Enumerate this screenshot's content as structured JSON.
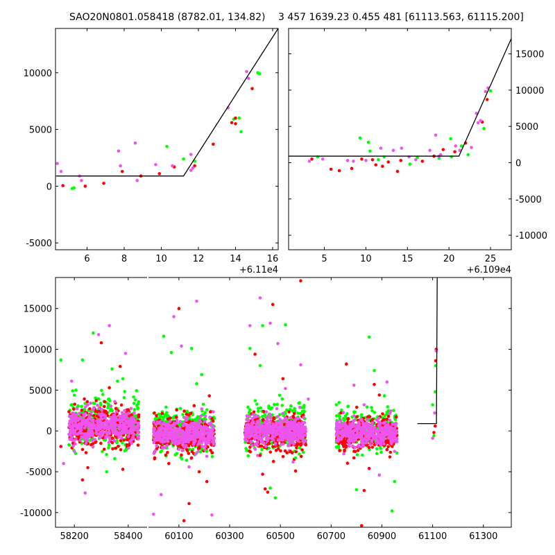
{
  "colors": {
    "green": "#00ff00",
    "red": "#ff0000",
    "magenta": "#ee55ee",
    "model_line": "#000000",
    "axes": "#000000"
  },
  "chart_data": [
    {
      "id": "top-left",
      "type": "scatter",
      "title": "SAO20N0801.058418 (8782.01, 134.82)",
      "xlim": [
        4.3,
        16.3
      ],
      "ylim": [
        -5600,
        13900
      ],
      "xticks": [
        6,
        8,
        10,
        12,
        14,
        16
      ],
      "yticks": [
        -5000,
        0,
        5000,
        10000
      ],
      "x_offset_label": "+6.11e4",
      "y_axis_side": "left",
      "series": [
        {
          "name": "green",
          "color": "green",
          "points": [
            [
              5.2,
              -200
            ],
            [
              5.3,
              -150
            ],
            [
              10.3,
              3500
            ],
            [
              11.2,
              2400
            ],
            [
              11.8,
              2200
            ],
            [
              13.9,
              5900
            ],
            [
              14.2,
              6000
            ],
            [
              14.3,
              4800
            ],
            [
              15.2,
              10000
            ],
            [
              15.3,
              9900
            ]
          ]
        },
        {
          "name": "red",
          "color": "red",
          "points": [
            [
              4.7,
              50
            ],
            [
              5.9,
              0
            ],
            [
              6.9,
              250
            ],
            [
              7.9,
              1300
            ],
            [
              8.9,
              900
            ],
            [
              9.9,
              1100
            ],
            [
              10.7,
              1700
            ],
            [
              11.8,
              1800
            ],
            [
              12.8,
              3700
            ],
            [
              13.8,
              5600
            ],
            [
              14.0,
              5500
            ],
            [
              14.0,
              6000
            ],
            [
              14.9,
              8600
            ]
          ]
        },
        {
          "name": "magenta",
          "color": "magenta",
          "points": [
            [
              4.4,
              2000
            ],
            [
              4.6,
              1300
            ],
            [
              5.6,
              900
            ],
            [
              5.7,
              500
            ],
            [
              7.7,
              3100
            ],
            [
              7.8,
              1800
            ],
            [
              8.6,
              3800
            ],
            [
              8.7,
              500
            ],
            [
              9.7,
              1900
            ],
            [
              10.6,
              1800
            ],
            [
              11.6,
              2800
            ],
            [
              11.6,
              1400
            ],
            [
              11.7,
              1600
            ],
            [
              13.6,
              6900
            ],
            [
              14.6,
              10100
            ],
            [
              14.7,
              9500
            ]
          ]
        }
      ],
      "model_line": [
        [
          4.3,
          900
        ],
        [
          11.2,
          900
        ],
        [
          16.3,
          13900
        ]
      ]
    },
    {
      "id": "top-right",
      "type": "scatter",
      "title": "3 457 1639.23 0.455 481 [61113.563, 61115.200]",
      "xlim": [
        0.7,
        27.5
      ],
      "ylim": [
        -12000,
        18500
      ],
      "xticks": [
        5,
        10,
        15,
        20,
        25
      ],
      "yticks": [
        -10000,
        -5000,
        0,
        5000,
        10000,
        15000
      ],
      "x_offset_label": "+6.109e4",
      "y_axis_side": "right",
      "series": [
        {
          "name": "green",
          "color": "green",
          "points": [
            [
              4.2,
              800
            ],
            [
              9.3,
              3400
            ],
            [
              10.3,
              2800
            ],
            [
              10.5,
              1600
            ],
            [
              11.5,
              400
            ],
            [
              12.2,
              800
            ],
            [
              15.3,
              -200
            ],
            [
              16.2,
              700
            ],
            [
              18.8,
              600
            ],
            [
              20.2,
              3300
            ],
            [
              20.3,
              800
            ],
            [
              21.5,
              2300
            ],
            [
              22.3,
              1100
            ],
            [
              24.2,
              4700
            ],
            [
              25.0,
              9900
            ]
          ]
        },
        {
          "name": "red",
          "color": "red",
          "points": [
            [
              3.5,
              500
            ],
            [
              5.8,
              -900
            ],
            [
              6.8,
              -1100
            ],
            [
              8.3,
              -800
            ],
            [
              9.5,
              500
            ],
            [
              10.8,
              400
            ],
            [
              11.2,
              -300
            ],
            [
              12.0,
              -500
            ],
            [
              12.7,
              100
            ],
            [
              13.8,
              -1200
            ],
            [
              14.2,
              300
            ],
            [
              16.8,
              200
            ],
            [
              18.2,
              900
            ],
            [
              19.3,
              1800
            ],
            [
              20.7,
              1500
            ],
            [
              22.0,
              2700
            ],
            [
              24.0,
              5600
            ],
            [
              24.6,
              8700
            ]
          ]
        },
        {
          "name": "magenta",
          "color": "magenta",
          "points": [
            [
              3.2,
              200
            ],
            [
              4.8,
              500
            ],
            [
              7.8,
              300
            ],
            [
              8.5,
              200
            ],
            [
              10.0,
              300
            ],
            [
              11.8,
              2000
            ],
            [
              13.3,
              1700
            ],
            [
              14.3,
              2000
            ],
            [
              15.2,
              800
            ],
            [
              16.0,
              400
            ],
            [
              17.7,
              1700
            ],
            [
              18.4,
              3800
            ],
            [
              18.8,
              900
            ],
            [
              19.0,
              1100
            ],
            [
              20.8,
              2300
            ],
            [
              21.3,
              1700
            ],
            [
              23.3,
              6800
            ],
            [
              23.5,
              5500
            ],
            [
              23.8,
              5800
            ],
            [
              24.4,
              9800
            ],
            [
              24.7,
              10300
            ],
            [
              22.7,
              2100
            ]
          ]
        }
      ],
      "model_line": [
        [
          0.7,
          900
        ],
        [
          21.2,
          900
        ],
        [
          27.5,
          17100
        ]
      ]
    },
    {
      "id": "bottom",
      "type": "scatter",
      "title": "",
      "xlim": [
        58130,
        61410
      ],
      "ylim": [
        -11800,
        18800
      ],
      "xticks_left": [
        58200,
        58400
      ],
      "xticks_right": [
        60100,
        60300,
        60500,
        60700,
        60900,
        61100,
        61300
      ],
      "yticks": [
        -10000,
        -5000,
        0,
        5000,
        10000,
        15000
      ],
      "y_axis_side": "left",
      "break_after": 58470,
      "break_before": 59980,
      "season_ranges": [
        [
          58180,
          58440,
          600,
          1100
        ],
        [
          60000,
          60240,
          -300,
          1000
        ],
        [
          60360,
          60600,
          0,
          1000
        ],
        [
          60720,
          60960,
          -200,
          900
        ]
      ],
      "last_segment": {
        "x_start": 61040,
        "x_flat_end": 61115,
        "level": 900,
        "x_top": 61118
      },
      "series": [
        {
          "name": "green",
          "color": "green",
          "points": [
            [
              58270,
              12000
            ],
            [
              58340,
              7600
            ],
            [
              58360,
              6100
            ],
            [
              58380,
              6400
            ],
            [
              58230,
              8700
            ],
            [
              58150,
              8700
            ],
            [
              58320,
              -5000
            ],
            [
              58350,
              -3400
            ],
            [
              58180,
              -1700
            ],
            [
              60040,
              11600
            ],
            [
              60070,
              9600
            ],
            [
              60130,
              -3600
            ],
            [
              60150,
              10100
            ],
            [
              60170,
              5800
            ],
            [
              60190,
              6900
            ],
            [
              60210,
              -2500
            ],
            [
              60380,
              10100
            ],
            [
              60420,
              8000
            ],
            [
              60430,
              12900
            ],
            [
              60460,
              -7000
            ],
            [
              60480,
              -8200
            ],
            [
              60520,
              13000
            ],
            [
              60560,
              -3300
            ],
            [
              60800,
              -7200
            ],
            [
              60850,
              11500
            ],
            [
              60870,
              7400
            ],
            [
              60910,
              4300
            ],
            [
              60940,
              -9800
            ],
            [
              60950,
              -6200
            ],
            [
              61100,
              3200
            ],
            [
              61105,
              -600
            ],
            [
              61110,
              4800
            ],
            [
              61112,
              8000
            ]
          ]
        },
        {
          "name": "red",
          "color": "red",
          "points": [
            [
              58230,
              -6000
            ],
            [
              58250,
              -4500
            ],
            [
              58300,
              10800
            ],
            [
              58330,
              5300
            ],
            [
              58370,
              7900
            ],
            [
              58380,
              -4700
            ],
            [
              58150,
              -1900
            ],
            [
              60060,
              -4000
            ],
            [
              60100,
              15000
            ],
            [
              60120,
              -11000
            ],
            [
              60140,
              -8900
            ],
            [
              60150,
              -3300
            ],
            [
              60160,
              3100
            ],
            [
              60180,
              -5000
            ],
            [
              60210,
              -6200
            ],
            [
              60220,
              4300
            ],
            [
              60400,
              9400
            ],
            [
              60420,
              -3000
            ],
            [
              60430,
              -5300
            ],
            [
              60440,
              -7100
            ],
            [
              60450,
              -7500
            ],
            [
              60470,
              15500
            ],
            [
              60490,
              -1800
            ],
            [
              60510,
              6400
            ],
            [
              60540,
              -2500
            ],
            [
              60560,
              -4900
            ],
            [
              60580,
              18400
            ],
            [
              60600,
              -1700
            ],
            [
              60760,
              8200
            ],
            [
              60790,
              -3300
            ],
            [
              60820,
              -11600
            ],
            [
              60830,
              -7300
            ],
            [
              60850,
              -4600
            ],
            [
              60870,
              5700
            ],
            [
              60890,
              4400
            ],
            [
              60920,
              -2300
            ],
            [
              61105,
              -200
            ],
            [
              61110,
              600
            ],
            [
              61112,
              8600
            ],
            [
              61114,
              10000
            ]
          ]
        },
        {
          "name": "magenta",
          "color": "magenta",
          "points": [
            [
              58190,
              6100
            ],
            [
              58240,
              -7600
            ],
            [
              58260,
              3400
            ],
            [
              58290,
              11800
            ],
            [
              58330,
              12900
            ],
            [
              58350,
              3600
            ],
            [
              58390,
              9500
            ],
            [
              58200,
              -2500
            ],
            [
              58160,
              -4000
            ],
            [
              60000,
              -10200
            ],
            [
              60030,
              -7800
            ],
            [
              60080,
              14000
            ],
            [
              60110,
              10400
            ],
            [
              60140,
              -4400
            ],
            [
              60170,
              15900
            ],
            [
              60190,
              2700
            ],
            [
              60210,
              -3100
            ],
            [
              60230,
              -10300
            ],
            [
              60380,
              12900
            ],
            [
              60400,
              -1600
            ],
            [
              60420,
              16300
            ],
            [
              60460,
              13200
            ],
            [
              60490,
              10700
            ],
            [
              60520,
              5200
            ],
            [
              60550,
              -3800
            ],
            [
              60580,
              8100
            ],
            [
              60610,
              3900
            ],
            [
              60750,
              -2800
            ],
            [
              60790,
              5600
            ],
            [
              60830,
              3200
            ],
            [
              60860,
              -1300
            ],
            [
              60890,
              -5400
            ],
            [
              60920,
              6000
            ],
            [
              60950,
              -2500
            ],
            [
              61100,
              -900
            ],
            [
              61108,
              2200
            ],
            [
              61114,
              9800
            ]
          ]
        }
      ],
      "model_line": [
        [
          61040,
          900
        ],
        [
          61115,
          900
        ],
        [
          61118,
          18800
        ]
      ]
    }
  ]
}
